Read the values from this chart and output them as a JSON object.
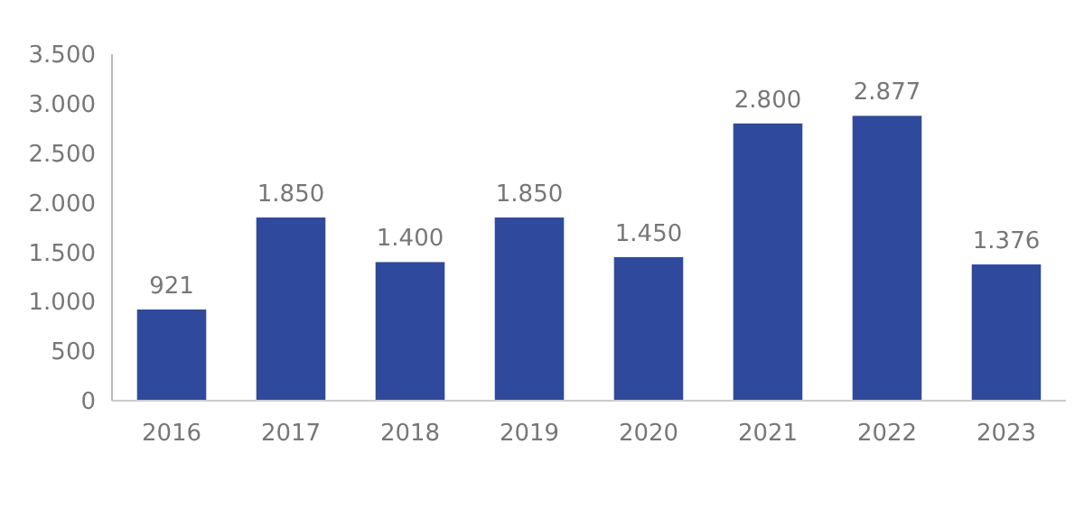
{
  "chart_data": {
    "type": "bar",
    "categories": [
      "2016",
      "2017",
      "2018",
      "2019",
      "2020",
      "2021",
      "2022",
      "2023"
    ],
    "values": [
      921,
      1850,
      1400,
      1850,
      1450,
      2800,
      2877,
      1376
    ],
    "value_labels": [
      "921",
      "1.850",
      "1.400",
      "1.850",
      "1.450",
      "2.800",
      "2.877",
      "1.376"
    ],
    "color": "#2f4a9c",
    "ylim": [
      0,
      3500
    ],
    "yticks": [
      {
        "value": 0,
        "label": "0"
      },
      {
        "value": 500,
        "label": "500"
      },
      {
        "value": 1000,
        "label": "1.000"
      },
      {
        "value": 1500,
        "label": "1.500"
      },
      {
        "value": 2000,
        "label": "2.000"
      },
      {
        "value": 2500,
        "label": "2.500"
      },
      {
        "value": 3000,
        "label": "3.000"
      },
      {
        "value": 3500,
        "label": "3.500"
      }
    ],
    "grid": false
  }
}
